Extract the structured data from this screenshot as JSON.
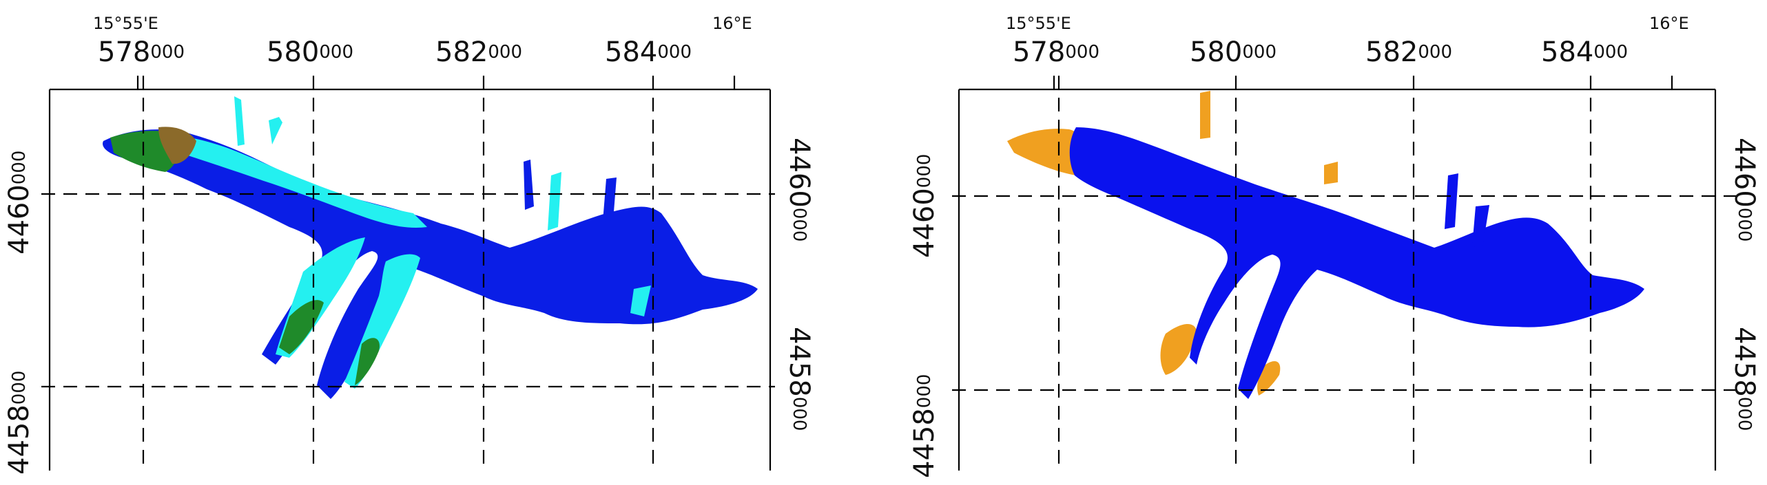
{
  "maps": [
    {
      "id": "left",
      "geo_labels": {
        "west": "15°55'E",
        "east": "16°E"
      },
      "easting_ticks": [
        {
          "major": "578",
          "minor": "000"
        },
        {
          "major": "580",
          "minor": "000"
        },
        {
          "major": "582",
          "minor": "000"
        },
        {
          "major": "584",
          "minor": "000"
        }
      ],
      "northing_ticks": [
        {
          "major": "4460",
          "minor": "000"
        },
        {
          "major": "4458",
          "minor": "000"
        }
      ],
      "colors": {
        "deep": "#0a1ee6",
        "shallow": "#24f0f0",
        "veg": "#1f8a2a",
        "bare": "#8b6a2a",
        "frame": "#000000"
      }
    },
    {
      "id": "right",
      "geo_labels": {
        "west": "15°55'E",
        "east": "16°E"
      },
      "easting_ticks": [
        {
          "major": "578",
          "minor": "000"
        },
        {
          "major": "580",
          "minor": "000"
        },
        {
          "major": "582",
          "minor": "000"
        },
        {
          "major": "584",
          "minor": "000"
        }
      ],
      "northing_ticks": [
        {
          "major": "4460",
          "minor": "000"
        },
        {
          "major": "4458",
          "minor": "000"
        }
      ],
      "colors": {
        "water": "#0a12ee",
        "land": "#f0a020",
        "frame": "#000000"
      }
    }
  ]
}
